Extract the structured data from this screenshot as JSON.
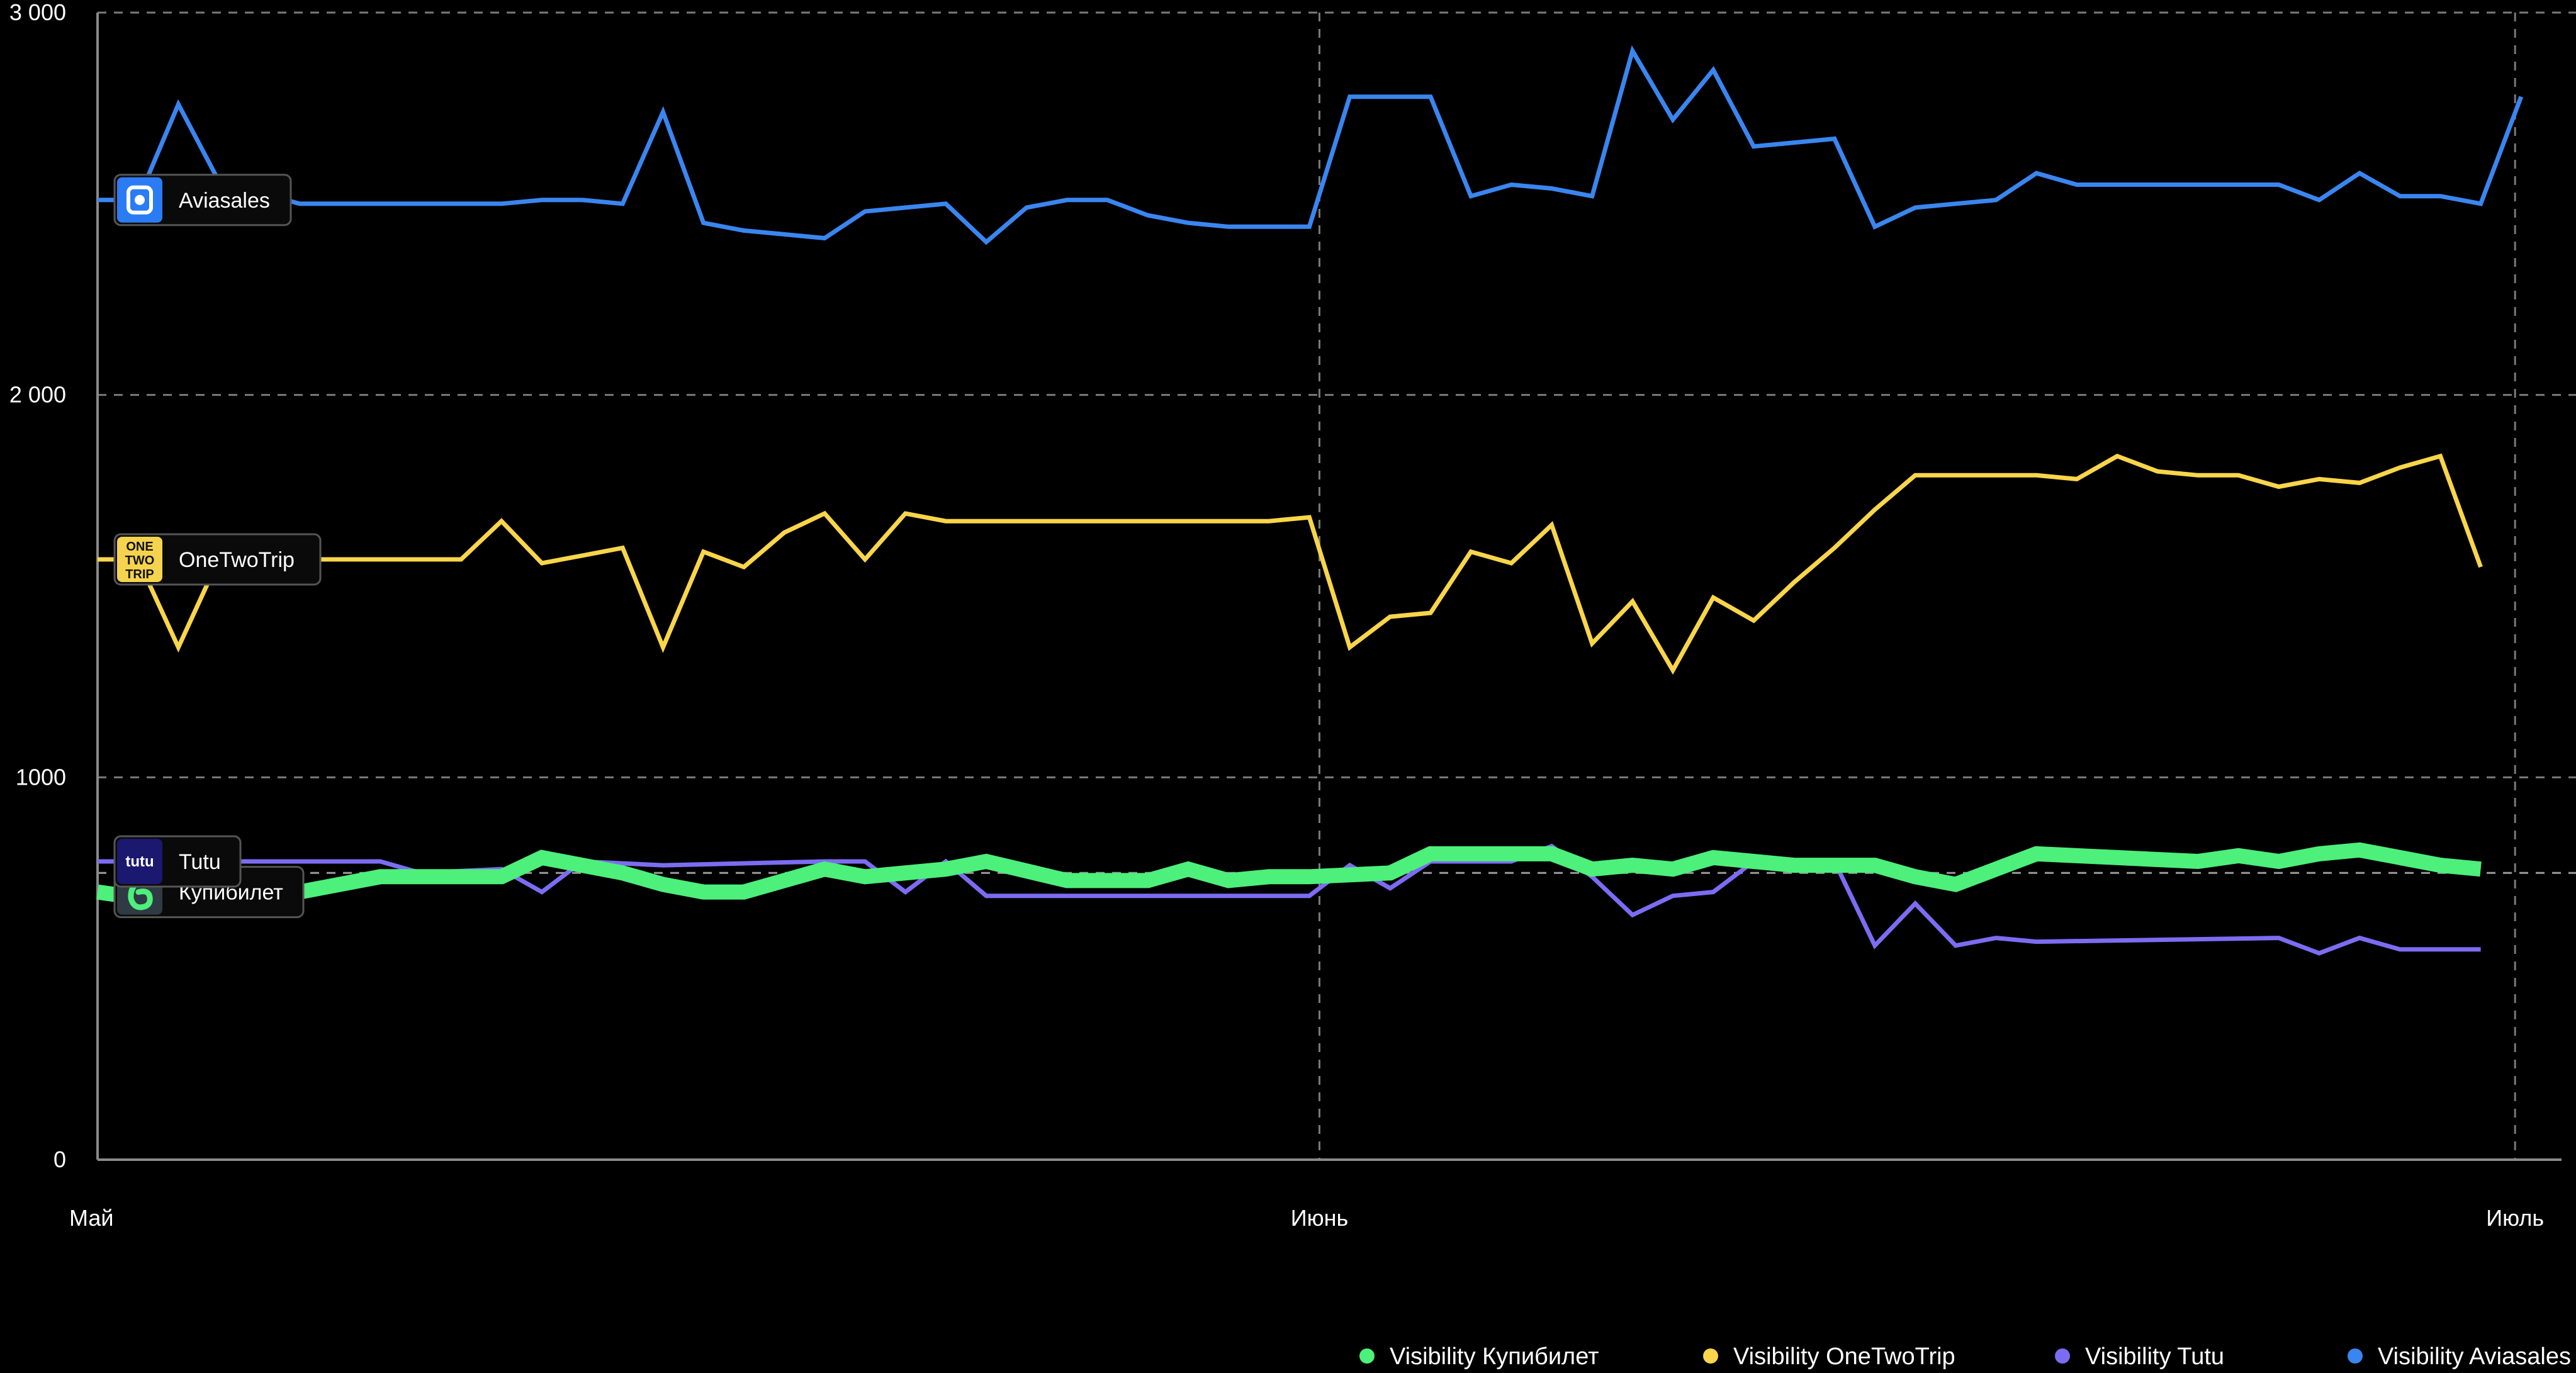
{
  "chart_data": {
    "type": "line",
    "background": "#000000",
    "title": "",
    "xlabel": "",
    "ylabel": "",
    "x_ticks": [
      "Май",
      "Июнь",
      "Июль"
    ],
    "y_ticks": [
      {
        "value": 0,
        "label": "0"
      },
      {
        "value": 1000,
        "label": "1000"
      },
      {
        "value": 2000,
        "label": "2 000"
      },
      {
        "value": 3000,
        "label": "3 000"
      }
    ],
    "ylim": [
      0,
      3000
    ],
    "reference_line": 750,
    "grid": true,
    "legend_position": "bottom-right",
    "series": [
      {
        "name": "Visibility Купибилет",
        "badge_label": "Купибилет",
        "badge_icon": "kupibilet-logo-icon",
        "color": "#4CF07A",
        "thick": true,
        "points": [
          [
            0,
            700
          ],
          [
            2,
            670
          ],
          [
            4,
            680
          ],
          [
            7,
            740
          ],
          [
            10,
            740
          ],
          [
            11,
            790
          ],
          [
            13,
            750
          ],
          [
            14,
            720
          ],
          [
            15,
            700
          ],
          [
            16,
            700
          ],
          [
            18,
            760
          ],
          [
            19,
            740
          ],
          [
            21,
            760
          ],
          [
            22,
            780
          ],
          [
            24,
            730
          ],
          [
            25,
            730
          ],
          [
            26,
            730
          ],
          [
            27,
            760
          ],
          [
            28,
            730
          ],
          [
            29,
            740
          ],
          [
            30,
            740
          ],
          [
            31,
            745
          ],
          [
            32,
            750
          ],
          [
            33,
            800
          ],
          [
            34,
            800
          ],
          [
            35,
            800
          ],
          [
            36,
            800
          ],
          [
            37,
            760
          ],
          [
            38,
            770
          ],
          [
            39,
            760
          ],
          [
            40,
            790
          ],
          [
            41,
            780
          ],
          [
            42,
            770
          ],
          [
            43,
            770
          ],
          [
            44,
            770
          ],
          [
            45,
            740
          ],
          [
            46,
            720
          ],
          [
            47,
            760
          ],
          [
            48,
            800
          ],
          [
            49,
            795
          ],
          [
            50,
            790
          ],
          [
            51,
            785
          ],
          [
            52,
            780
          ],
          [
            53,
            795
          ],
          [
            54,
            780
          ],
          [
            55,
            800
          ],
          [
            56,
            810
          ],
          [
            57,
            790
          ],
          [
            58,
            770
          ],
          [
            59,
            760
          ]
        ]
      },
      {
        "name": "Visibility OneTwoTrip",
        "badge_label": "OneTwoTrip",
        "badge_icon": "onetwotrip-logo-icon",
        "badge_icon_text": "ONE TWO TRIP",
        "color": "#F8D54A",
        "thick": false,
        "points": [
          [
            0,
            1570
          ],
          [
            1,
            1570
          ],
          [
            2,
            1340
          ],
          [
            3,
            1570
          ],
          [
            4,
            1570
          ],
          [
            5,
            1570
          ],
          [
            6,
            1570
          ],
          [
            7,
            1570
          ],
          [
            8,
            1570
          ],
          [
            9,
            1570
          ],
          [
            10,
            1670
          ],
          [
            11,
            1560
          ],
          [
            12,
            1580
          ],
          [
            13,
            1600
          ],
          [
            14,
            1340
          ],
          [
            15,
            1590
          ],
          [
            16,
            1550
          ],
          [
            17,
            1640
          ],
          [
            18,
            1690
          ],
          [
            19,
            1570
          ],
          [
            20,
            1690
          ],
          [
            21,
            1670
          ],
          [
            22,
            1670
          ],
          [
            23,
            1670
          ],
          [
            24,
            1670
          ],
          [
            25,
            1670
          ],
          [
            26,
            1670
          ],
          [
            27,
            1670
          ],
          [
            28,
            1670
          ],
          [
            29,
            1670
          ],
          [
            30,
            1680
          ],
          [
            31,
            1340
          ],
          [
            32,
            1420
          ],
          [
            33,
            1430
          ],
          [
            34,
            1590
          ],
          [
            35,
            1560
          ],
          [
            36,
            1660
          ],
          [
            37,
            1350
          ],
          [
            38,
            1460
          ],
          [
            39,
            1280
          ],
          [
            40,
            1470
          ],
          [
            41,
            1410
          ],
          [
            42,
            1510
          ],
          [
            43,
            1600
          ],
          [
            44,
            1700
          ],
          [
            45,
            1790
          ],
          [
            46,
            1790
          ],
          [
            47,
            1790
          ],
          [
            48,
            1790
          ],
          [
            49,
            1780
          ],
          [
            50,
            1840
          ],
          [
            51,
            1800
          ],
          [
            52,
            1790
          ],
          [
            53,
            1790
          ],
          [
            54,
            1760
          ],
          [
            55,
            1780
          ],
          [
            56,
            1770
          ],
          [
            57,
            1810
          ],
          [
            58,
            1840
          ],
          [
            59,
            1550
          ]
        ]
      },
      {
        "name": "Visibility Tutu",
        "badge_label": "Tutu",
        "badge_icon": "tutu-logo-icon",
        "badge_icon_text": "tutu",
        "color": "#7C6CF2",
        "thick": false,
        "points": [
          [
            0,
            780
          ],
          [
            2,
            780
          ],
          [
            4,
            780
          ],
          [
            7,
            780
          ],
          [
            8,
            750
          ],
          [
            10,
            760
          ],
          [
            11,
            700
          ],
          [
            12,
            780
          ],
          [
            14,
            770
          ],
          [
            18,
            780
          ],
          [
            19,
            780
          ],
          [
            20,
            700
          ],
          [
            21,
            780
          ],
          [
            22,
            690
          ],
          [
            26,
            690
          ],
          [
            29,
            690
          ],
          [
            30,
            690
          ],
          [
            31,
            770
          ],
          [
            32,
            710
          ],
          [
            33,
            780
          ],
          [
            35,
            780
          ],
          [
            36,
            820
          ],
          [
            37,
            740
          ],
          [
            38,
            640
          ],
          [
            39,
            690
          ],
          [
            40,
            700
          ],
          [
            41,
            780
          ],
          [
            42,
            770
          ],
          [
            43,
            780
          ],
          [
            44,
            560
          ],
          [
            45,
            670
          ],
          [
            46,
            560
          ],
          [
            47,
            580
          ],
          [
            48,
            570
          ],
          [
            54,
            580
          ],
          [
            55,
            540
          ],
          [
            56,
            580
          ],
          [
            57,
            550
          ],
          [
            59,
            550
          ]
        ]
      },
      {
        "name": "Visibility Aviasales",
        "badge_label": "Aviasales",
        "badge_icon": "aviasales-logo-icon",
        "color": "#3A86F0",
        "thick": false,
        "points": [
          [
            0,
            2510
          ],
          [
            1,
            2510
          ],
          [
            2,
            2760
          ],
          [
            3,
            2560
          ],
          [
            4,
            2530
          ],
          [
            5,
            2500
          ],
          [
            6,
            2500
          ],
          [
            7,
            2500
          ],
          [
            8,
            2500
          ],
          [
            9,
            2500
          ],
          [
            10,
            2500
          ],
          [
            11,
            2510
          ],
          [
            12,
            2510
          ],
          [
            13,
            2500
          ],
          [
            14,
            2740
          ],
          [
            15,
            2450
          ],
          [
            16,
            2430
          ],
          [
            17,
            2420
          ],
          [
            18,
            2410
          ],
          [
            19,
            2480
          ],
          [
            20,
            2490
          ],
          [
            21,
            2500
          ],
          [
            22,
            2400
          ],
          [
            23,
            2490
          ],
          [
            24,
            2510
          ],
          [
            25,
            2510
          ],
          [
            26,
            2470
          ],
          [
            27,
            2450
          ],
          [
            28,
            2440
          ],
          [
            29,
            2440
          ],
          [
            30,
            2440
          ],
          [
            31,
            2780
          ],
          [
            32,
            2780
          ],
          [
            33,
            2780
          ],
          [
            34,
            2520
          ],
          [
            35,
            2550
          ],
          [
            36,
            2540
          ],
          [
            37,
            2520
          ],
          [
            38,
            2900
          ],
          [
            39,
            2720
          ],
          [
            40,
            2850
          ],
          [
            41,
            2650
          ],
          [
            42,
            2660
          ],
          [
            43,
            2670
          ],
          [
            44,
            2440
          ],
          [
            45,
            2490
          ],
          [
            46,
            2500
          ],
          [
            47,
            2510
          ],
          [
            48,
            2580
          ],
          [
            49,
            2550
          ],
          [
            50,
            2550
          ],
          [
            51,
            2550
          ],
          [
            52,
            2550
          ],
          [
            53,
            2550
          ],
          [
            54,
            2550
          ],
          [
            55,
            2510
          ],
          [
            56,
            2580
          ],
          [
            57,
            2520
          ],
          [
            58,
            2520
          ],
          [
            59,
            2500
          ],
          [
            60,
            2780
          ]
        ]
      }
    ],
    "legend": [
      {
        "label": "Visibility Купибилет",
        "color": "#4CF07A"
      },
      {
        "label": "Visibility OneTwoTrip",
        "color": "#F8D54A"
      },
      {
        "label": "Visibility Tutu",
        "color": "#7C6CF2"
      },
      {
        "label": "Visibility Aviasales",
        "color": "#3A86F0"
      }
    ]
  }
}
